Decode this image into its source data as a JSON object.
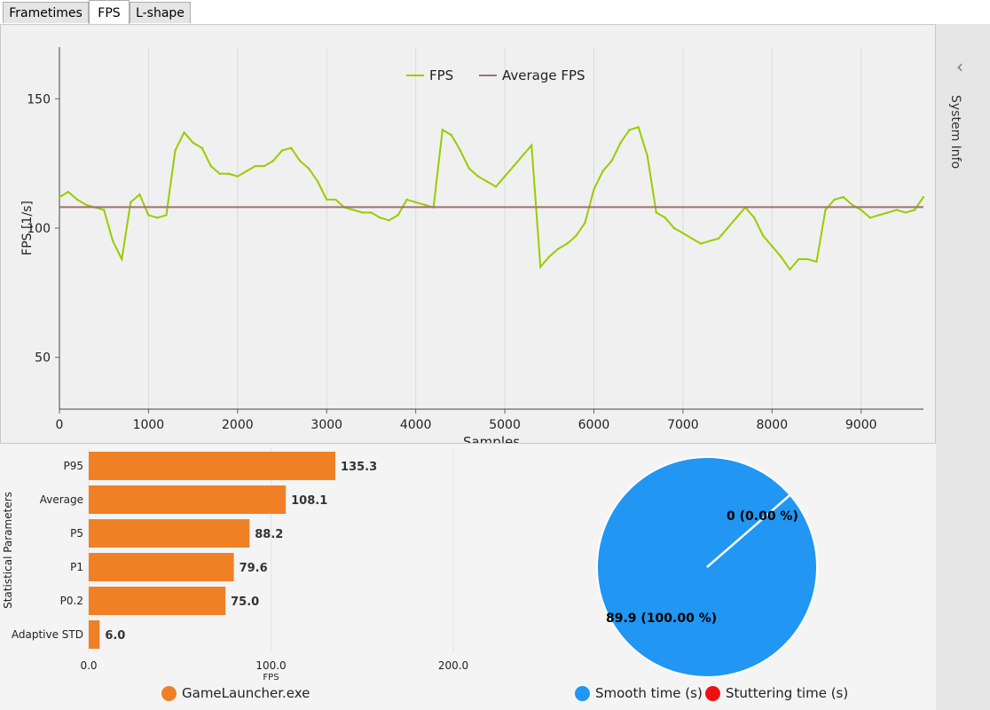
{
  "tabs": [
    "Frametimes",
    "FPS",
    "L-shape"
  ],
  "active_tab": 1,
  "side_panel": {
    "title": "System Info"
  },
  "colors": {
    "fps": "#99cc00",
    "average": "#a07070",
    "bar": "#f08025",
    "smooth": "#2196f3",
    "stutter": "#ee1111"
  },
  "fps_chart": {
    "legend": [
      "FPS",
      "Average FPS"
    ],
    "xlabel": "Samples",
    "ylabel": "FPS [1/s]",
    "xticks": [
      "0",
      "1000",
      "2000",
      "3000",
      "4000",
      "5000",
      "6000",
      "7000",
      "8000",
      "9000"
    ],
    "yticks": [
      "50",
      "100",
      "150"
    ]
  },
  "bar_chart": {
    "ylabel": "Statistical Parameters",
    "xlabel": "FPS",
    "xticks": [
      "0.0",
      "100.0",
      "200.0"
    ],
    "legend": "GameLauncher.exe"
  },
  "pie_chart": {
    "labels": [
      "0 (0.00 %)",
      "89.9 (100.00 %)"
    ],
    "legend": [
      "Smooth time (s)",
      "Stuttering time (s)"
    ]
  },
  "chart_data": [
    {
      "type": "line",
      "xlabel": "Samples",
      "ylabel": "FPS [1/s]",
      "xlim": [
        0,
        9700
      ],
      "ylim": [
        30,
        170
      ],
      "series": [
        {
          "name": "FPS",
          "x": [
            0,
            100,
            200,
            300,
            400,
            500,
            600,
            700,
            800,
            900,
            1000,
            1100,
            1200,
            1300,
            1400,
            1500,
            1600,
            1700,
            1800,
            1900,
            2000,
            2100,
            2200,
            2300,
            2400,
            2500,
            2600,
            2700,
            2800,
            2900,
            3000,
            3100,
            3200,
            3300,
            3400,
            3500,
            3600,
            3700,
            3800,
            3900,
            4000,
            4100,
            4200,
            4300,
            4400,
            4500,
            4600,
            4700,
            4800,
            4900,
            5000,
            5100,
            5200,
            5300,
            5400,
            5500,
            5600,
            5700,
            5800,
            5900,
            6000,
            6100,
            6200,
            6300,
            6400,
            6500,
            6600,
            6700,
            6800,
            6900,
            7000,
            7100,
            7200,
            7300,
            7400,
            7500,
            7600,
            7700,
            7800,
            7900,
            8000,
            8100,
            8200,
            8300,
            8400,
            8500,
            8600,
            8700,
            8800,
            8900,
            9000,
            9100,
            9200,
            9300,
            9400,
            9500,
            9600,
            9700
          ],
          "y": [
            112,
            114,
            111,
            109,
            108,
            107,
            95,
            88,
            110,
            113,
            105,
            104,
            105,
            130,
            137,
            133,
            131,
            124,
            121,
            121,
            120,
            122,
            124,
            124,
            126,
            130,
            131,
            126,
            123,
            118,
            111,
            111,
            108,
            107,
            106,
            106,
            104,
            103,
            105,
            111,
            110,
            109,
            108,
            138,
            136,
            130,
            123,
            120,
            118,
            116,
            120,
            124,
            128,
            132,
            85,
            89,
            92,
            94,
            97,
            102,
            115,
            122,
            126,
            133,
            138,
            139,
            128,
            106,
            104,
            100,
            98,
            96,
            94,
            95,
            96,
            100,
            104,
            108,
            104,
            97,
            93,
            89,
            84,
            88,
            88,
            87,
            107,
            111,
            112,
            109,
            107,
            104,
            105,
            106,
            107,
            106,
            107,
            112
          ]
        },
        {
          "name": "Average FPS",
          "x": [
            0,
            9700
          ],
          "y": [
            108.1,
            108.1
          ]
        }
      ]
    },
    {
      "type": "bar",
      "categories": [
        "P95",
        "Average",
        "P5",
        "P1",
        "P0.2",
        "Adaptive STD"
      ],
      "values": [
        135.3,
        108.1,
        88.2,
        79.6,
        75.0,
        6.0
      ],
      "xlabel": "FPS",
      "ylabel": "Statistical Parameters",
      "xlim": [
        0,
        200
      ],
      "series_name": "GameLauncher.exe"
    },
    {
      "type": "pie",
      "labels": [
        "Smooth time (s)",
        "Stuttering time (s)"
      ],
      "values": [
        89.9,
        0
      ],
      "percent": [
        100.0,
        0.0
      ]
    }
  ]
}
